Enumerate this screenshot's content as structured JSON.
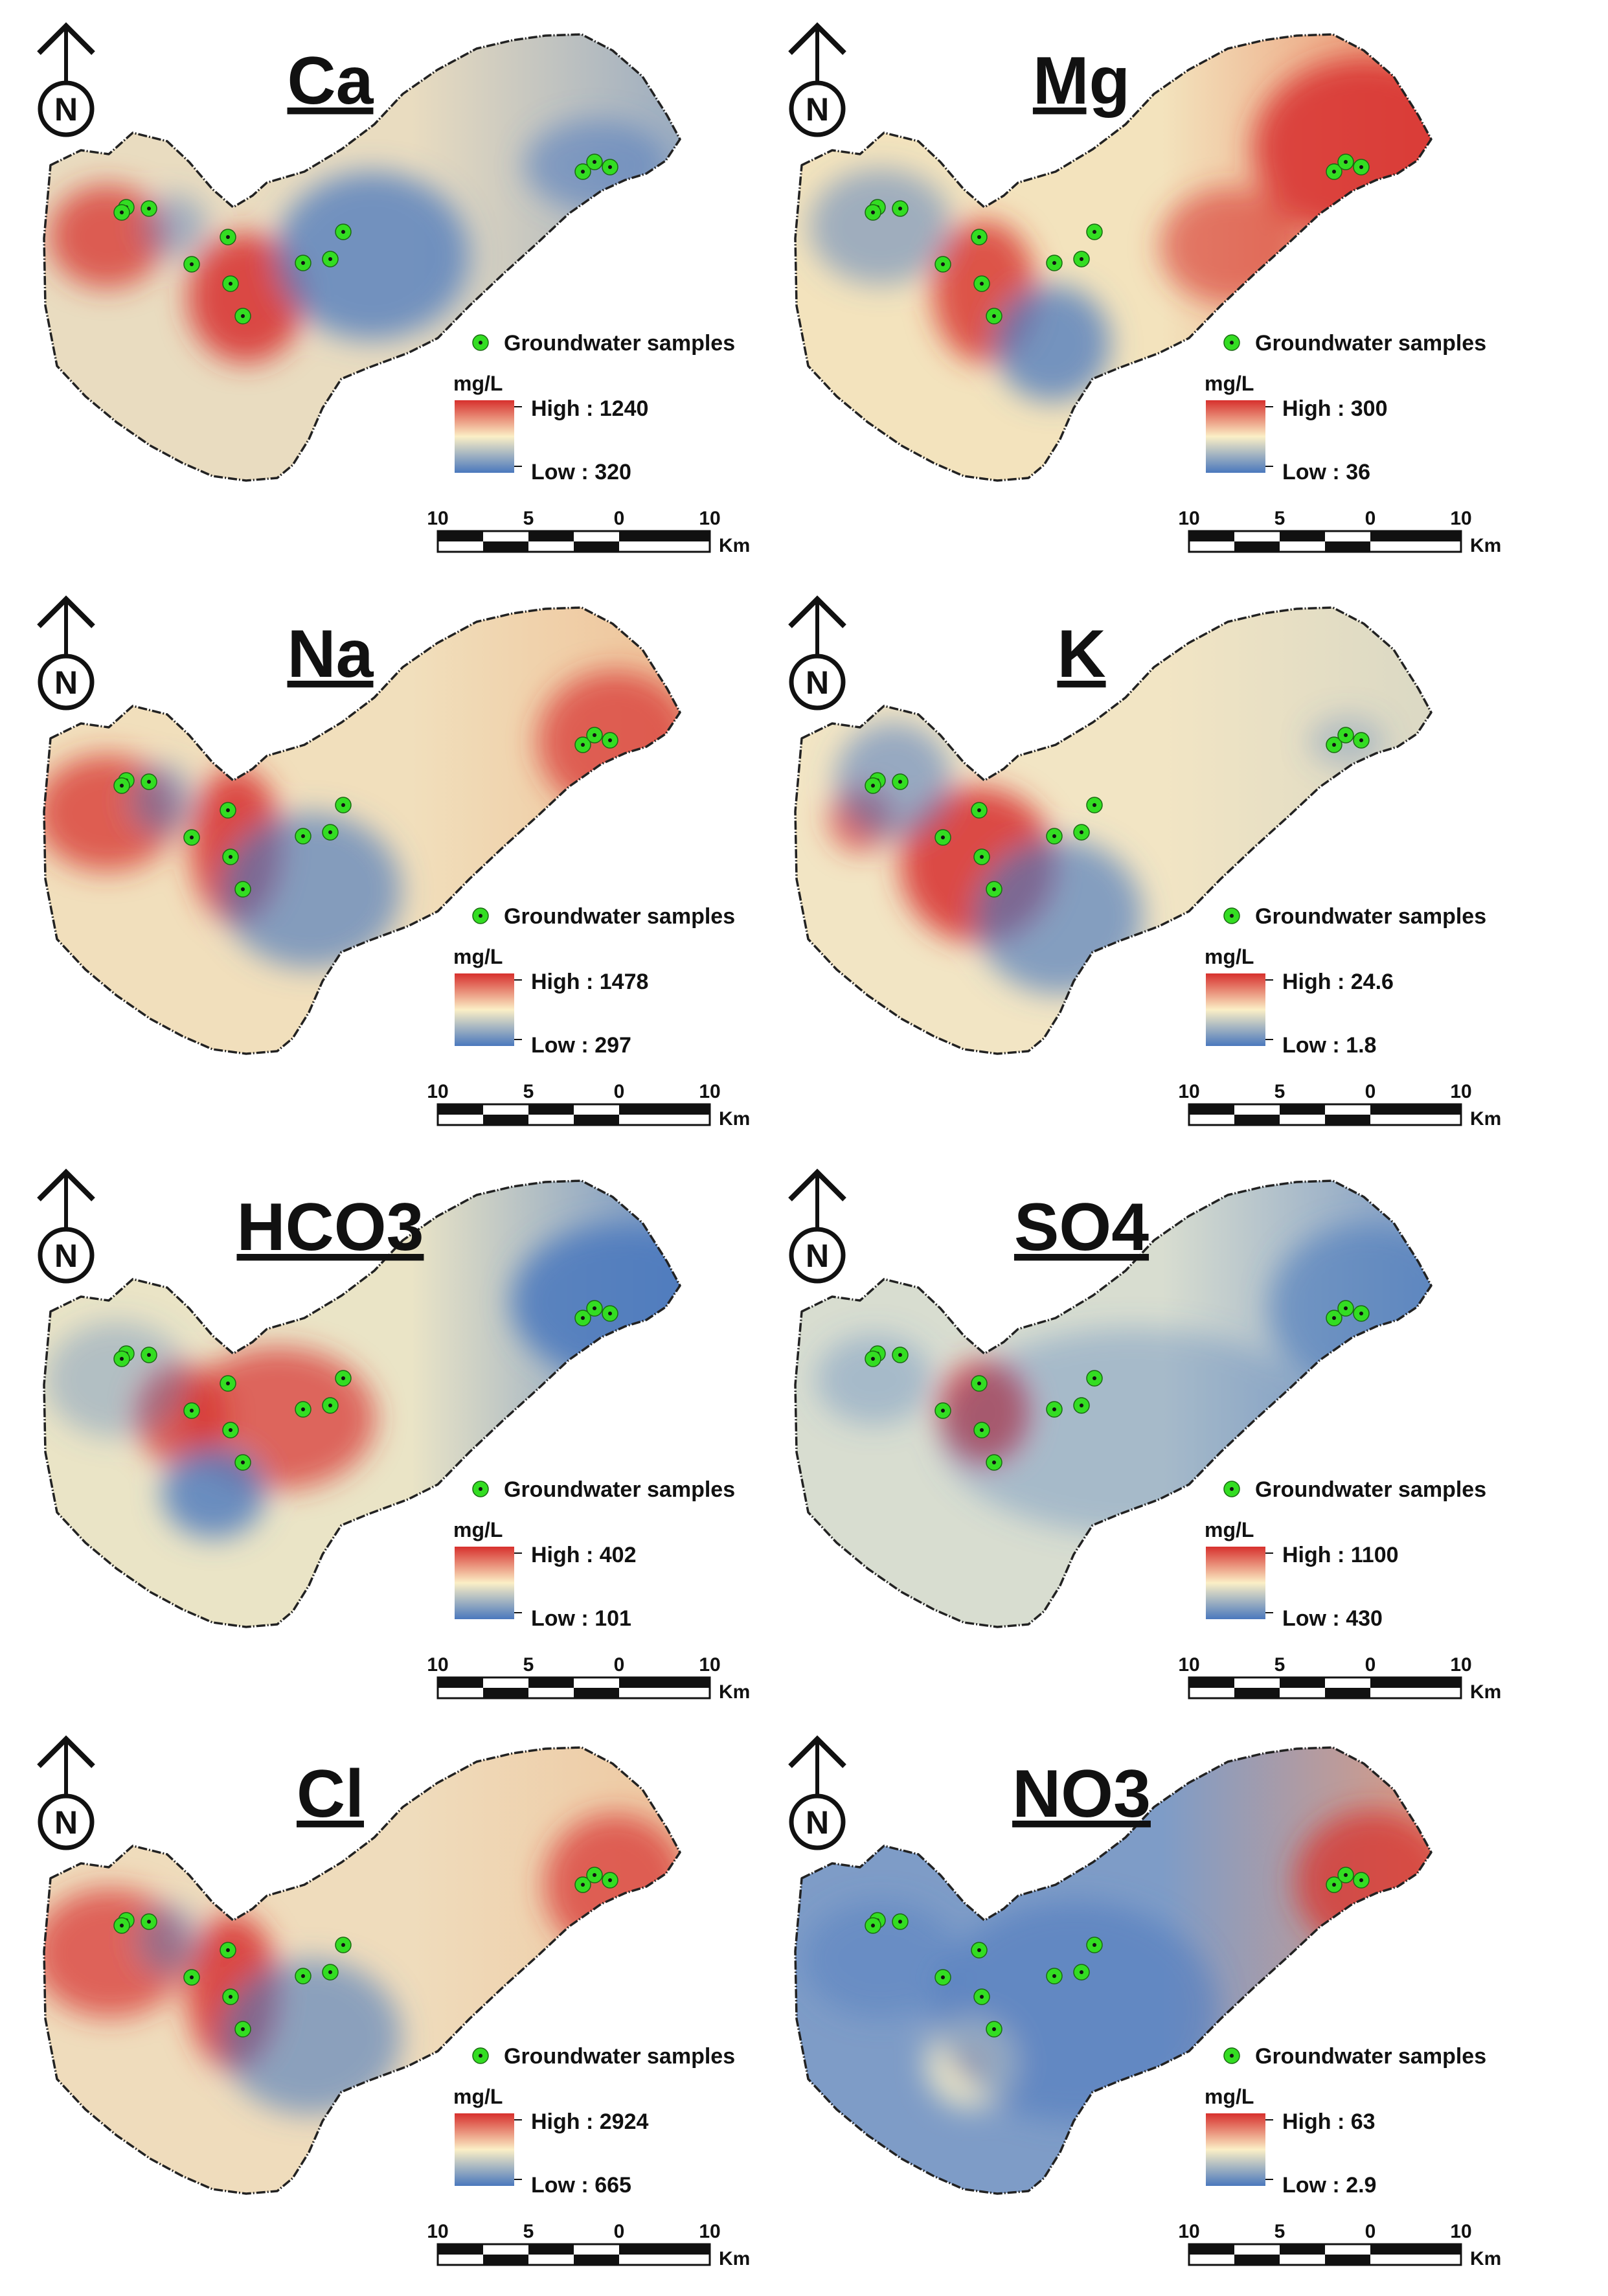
{
  "legend_point_label": "Groundwater samples",
  "unit_label": "mg/L",
  "north_letter": "N",
  "scale": {
    "ticks": [
      "10",
      "5",
      "0",
      "10"
    ],
    "unit": "Km"
  },
  "colors": {
    "high": "#d7302d",
    "mid": "#fbefc6",
    "low": "#4a78bd",
    "boundary": "#222222",
    "sample": "#33dd22"
  },
  "panels": [
    {
      "title": "Ca",
      "high": "High : 1240",
      "low": "Low : 320"
    },
    {
      "title": "Mg",
      "high": "High : 300",
      "low": "Low : 36"
    },
    {
      "title": "Na",
      "high": "High : 1478",
      "low": "Low : 297"
    },
    {
      "title": "K",
      "high": "High : 24.6",
      "low": "Low : 1.8"
    },
    {
      "title": "HCO3",
      "high": "High : 402",
      "low": "Low : 101"
    },
    {
      "title": "SO4",
      "high": "High : 1100",
      "low": "Low : 430"
    },
    {
      "title": "Cl",
      "high": "High : 2924",
      "low": "Low : 665"
    },
    {
      "title": "NO3",
      "high": "High : 63",
      "low": "Low : 2.9"
    }
  ]
}
